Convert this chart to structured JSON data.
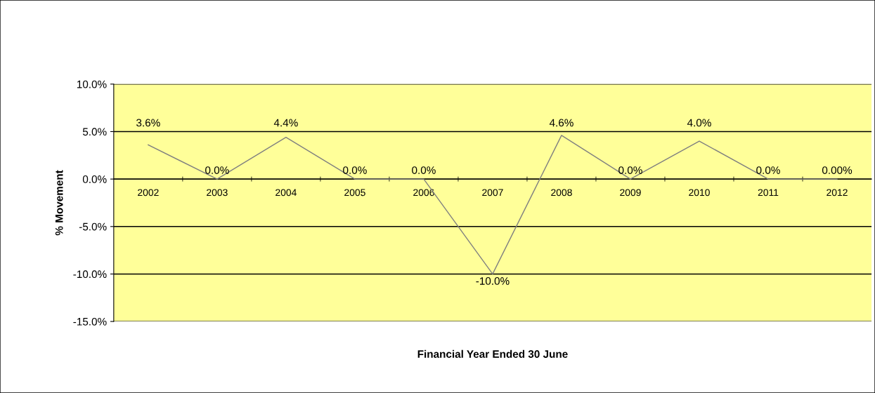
{
  "chart_data": {
    "type": "line",
    "xlabel": "Financial Year Ended 30 June",
    "ylabel": "% Movement",
    "categories": [
      "2002",
      "2003",
      "2004",
      "2005",
      "2006",
      "2007",
      "2008",
      "2009",
      "2010",
      "2011",
      "2012"
    ],
    "series": [
      {
        "color": "#808080",
        "values": [
          3.6,
          0.0,
          4.4,
          0.0,
          0.0,
          -10.0,
          4.6,
          0.0,
          4.0,
          0.0,
          0.0
        ],
        "value_labels": [
          "3.6%",
          "0.0%",
          "4.4%",
          "0.0%",
          "0.0%",
          "-10.0%",
          "4.6%",
          "0.0%",
          "4.0%",
          "0.0%",
          "0.00%"
        ]
      }
    ],
    "ylim": [
      -15,
      10
    ],
    "yticks": [
      {
        "value": -15,
        "label": "-15.0%"
      },
      {
        "value": -10,
        "label": "-10.0%"
      },
      {
        "value": -5,
        "label": "-5.0%"
      },
      {
        "value": 0,
        "label": "0.0%"
      },
      {
        "value": 5,
        "label": "5.0%"
      },
      {
        "value": 10,
        "label": "10.0%"
      }
    ],
    "grid": "y",
    "legend": false,
    "marker": "none",
    "line_style": "solid"
  }
}
